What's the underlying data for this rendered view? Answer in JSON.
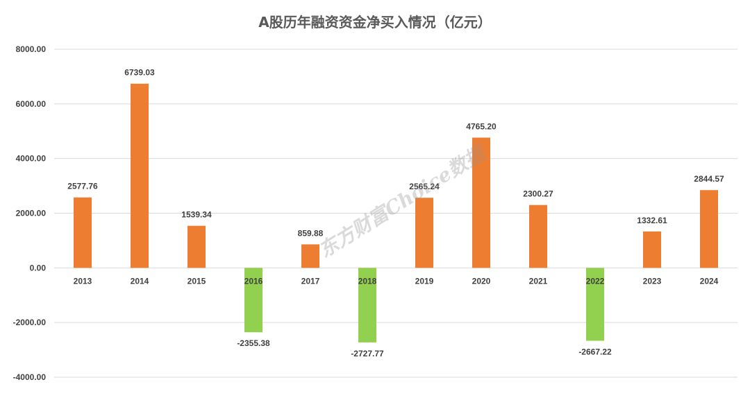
{
  "chart_data": {
    "type": "bar",
    "title": "A股历年融资资金净买入情况（亿元）",
    "categories": [
      "2013",
      "2014",
      "2015",
      "2016",
      "2017",
      "2018",
      "2019",
      "2020",
      "2021",
      "2022",
      "2023",
      "2024"
    ],
    "values": [
      2577.76,
      6739.03,
      1539.34,
      -2355.38,
      859.88,
      -2727.77,
      2565.24,
      4765.2,
      2300.27,
      -2667.22,
      1332.61,
      2844.57
    ],
    "value_labels": [
      "2577.76",
      "6739.03",
      "1539.34",
      "-2355.38",
      "859.88",
      "-2727.77",
      "2565.24",
      "4765.20",
      "2300.27",
      "-2667.22",
      "1332.61",
      "2844.57"
    ],
    "y_ticks": [
      8000,
      6000,
      4000,
      2000,
      0,
      -2000,
      -4000
    ],
    "y_tick_labels": [
      "8000.00",
      "6000.00",
      "4000.00",
      "2000.00",
      "0.00",
      "-2000.00",
      "-4000.00"
    ],
    "ylim": [
      -4000,
      8000
    ],
    "grid": true,
    "xlabel": "",
    "ylabel": "",
    "colors": {
      "positive": "#ED7D31",
      "negative": "#92D050",
      "grid": "#D9D9D9",
      "text": "#404040",
      "title": "#595959"
    }
  },
  "watermark": "东方财富Choice数据"
}
